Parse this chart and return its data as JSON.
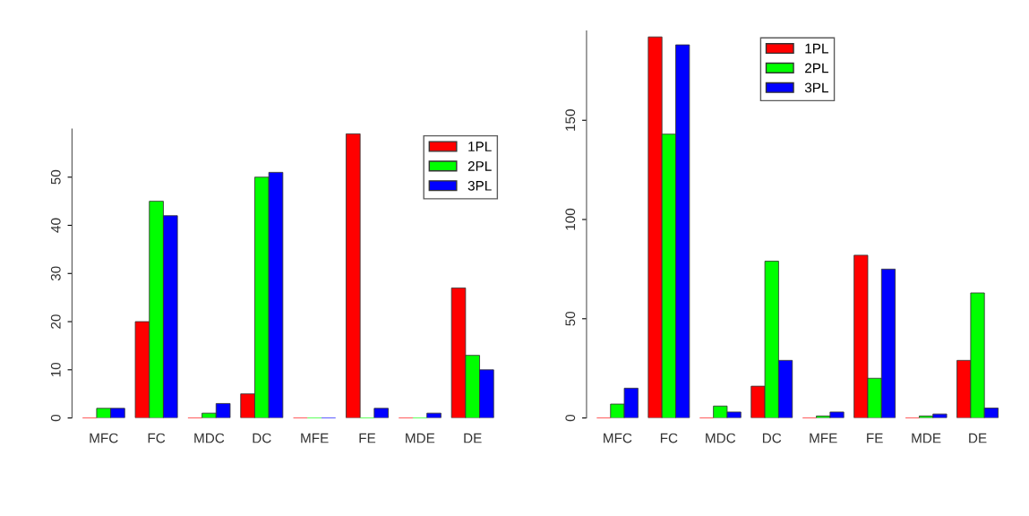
{
  "chart_data": [
    {
      "type": "bar",
      "categories": [
        "MFC",
        "FC",
        "MDC",
        "DC",
        "MFE",
        "FE",
        "MDE",
        "DE"
      ],
      "ylim": [
        0,
        60
      ],
      "yticks": [
        0,
        10,
        20,
        30,
        40,
        50
      ],
      "legend": "top right",
      "grid": false,
      "series": [
        {
          "name": "1PL",
          "color": "#ff0000",
          "values": [
            0,
            20,
            0,
            5,
            0,
            59,
            0,
            27
          ]
        },
        {
          "name": "2PL",
          "color": "#00ff00",
          "values": [
            2,
            45,
            1,
            50,
            0,
            0,
            0,
            13
          ]
        },
        {
          "name": "3PL",
          "color": "#0000ff",
          "values": [
            2,
            42,
            3,
            51,
            0,
            2,
            1,
            10
          ]
        }
      ]
    },
    {
      "type": "bar",
      "categories": [
        "MFC",
        "FC",
        "MDC",
        "DC",
        "MFE",
        "FE",
        "MDE",
        "DE"
      ],
      "ylim": [
        0,
        195
      ],
      "yticks": [
        0,
        50,
        100,
        150
      ],
      "legend": "top",
      "grid": false,
      "series": [
        {
          "name": "1PL",
          "color": "#ff0000",
          "values": [
            0,
            192,
            0,
            16,
            0,
            82,
            0,
            29
          ]
        },
        {
          "name": "2PL",
          "color": "#00ff00",
          "values": [
            7,
            143,
            6,
            79,
            1,
            20,
            1,
            63
          ]
        },
        {
          "name": "3PL",
          "color": "#0000ff",
          "values": [
            15,
            188,
            3,
            29,
            3,
            75,
            2,
            5
          ]
        }
      ]
    }
  ]
}
